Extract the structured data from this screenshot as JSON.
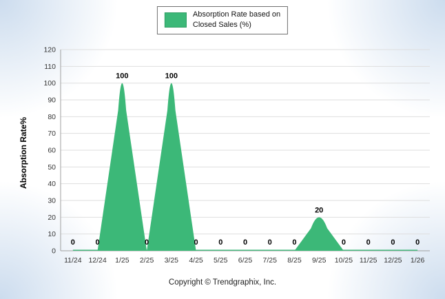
{
  "legend": {
    "line1": "Absorption Rate based on",
    "line2": "Closed Sales (%)"
  },
  "ylabel": "Absorption Rate%",
  "footer": "Copyright © Trendgraphix, Inc.",
  "chart_data": {
    "type": "area",
    "series_name": "Absorption Rate based on Closed Sales (%)",
    "categories": [
      "11/24",
      "12/24",
      "1/25",
      "2/25",
      "3/25",
      "4/25",
      "5/25",
      "6/25",
      "7/25",
      "8/25",
      "9/25",
      "10/25",
      "11/25",
      "12/25",
      "1/26"
    ],
    "values": [
      0,
      0,
      100,
      0,
      100,
      0,
      0,
      0,
      0,
      0,
      20,
      0,
      0,
      0,
      0
    ],
    "title": "",
    "xlabel": "",
    "ylabel": "Absorption Rate%",
    "ylim": [
      0,
      120
    ],
    "ytick_step": 10,
    "grid": true,
    "legend_position": "top-center",
    "colors": {
      "fill": "#3cb878",
      "stroke": "#2f9e63",
      "gridline": "#dedede",
      "axis": "#9f9f9f",
      "tick_text": "#333333",
      "data_label": "#000000"
    }
  }
}
